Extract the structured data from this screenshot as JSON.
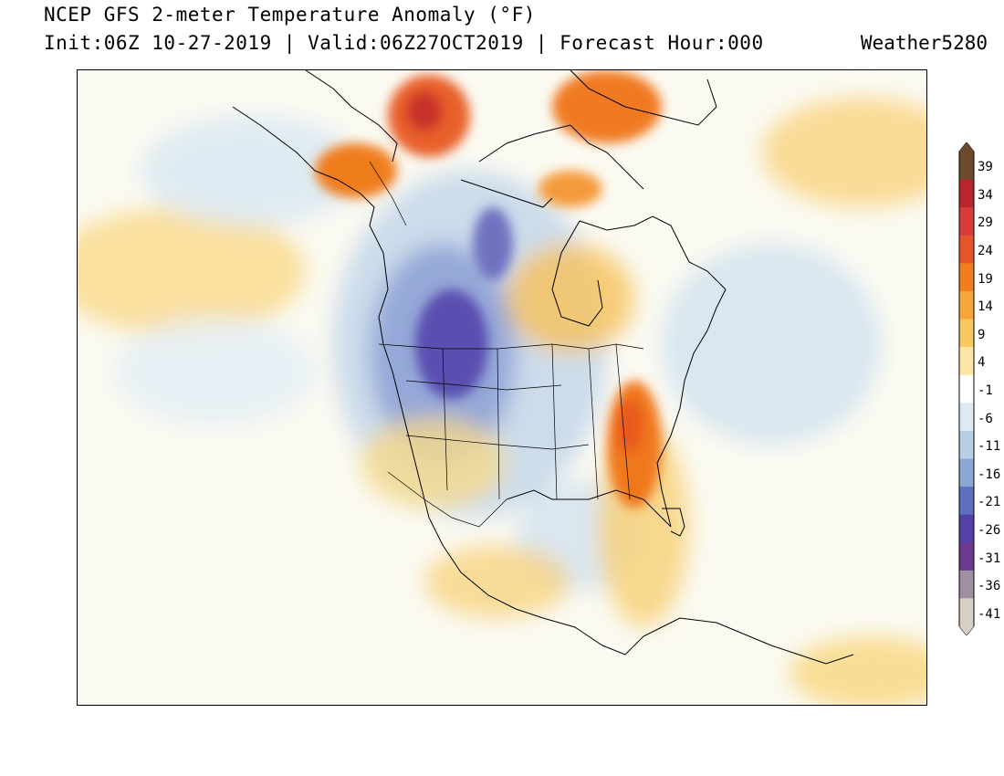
{
  "header": {
    "title": "NCEP GFS 2-meter Temperature Anomaly (°F)",
    "subtitle": "Init:06Z 10-27-2019 | Valid:06Z27OCT2019 | Forecast Hour:000",
    "brand": "Weather5280"
  },
  "colorbar": {
    "labels": [
      "39",
      "34",
      "29",
      "24",
      "19",
      "14",
      "9",
      "4",
      "-1",
      "-6",
      "-11",
      "-16",
      "-21",
      "-26",
      "-31",
      "-36",
      "-41"
    ],
    "colors": [
      "#6b4a2e",
      "#b8252e",
      "#d83a3a",
      "#e8542a",
      "#f07d1e",
      "#f6a53a",
      "#f8c960",
      "#fbe6a6",
      "#ffffff",
      "#dde9f3",
      "#b9d0e4",
      "#8aa9d2",
      "#5f6fc0",
      "#5540a6",
      "#6b3a8e",
      "#a08fa0",
      "#d8cfc4"
    ]
  },
  "map": {
    "anomalies": [
      {
        "name": "yukon-warm",
        "color": "#e8602a"
      },
      {
        "name": "alaska-warm",
        "color": "#f07d1e"
      },
      {
        "name": "greenland-warm",
        "color": "#f07a22"
      },
      {
        "name": "southeast-warm",
        "color": "#f0781e"
      },
      {
        "name": "rockies-cold",
        "color": "#5a50b0"
      }
    ]
  }
}
